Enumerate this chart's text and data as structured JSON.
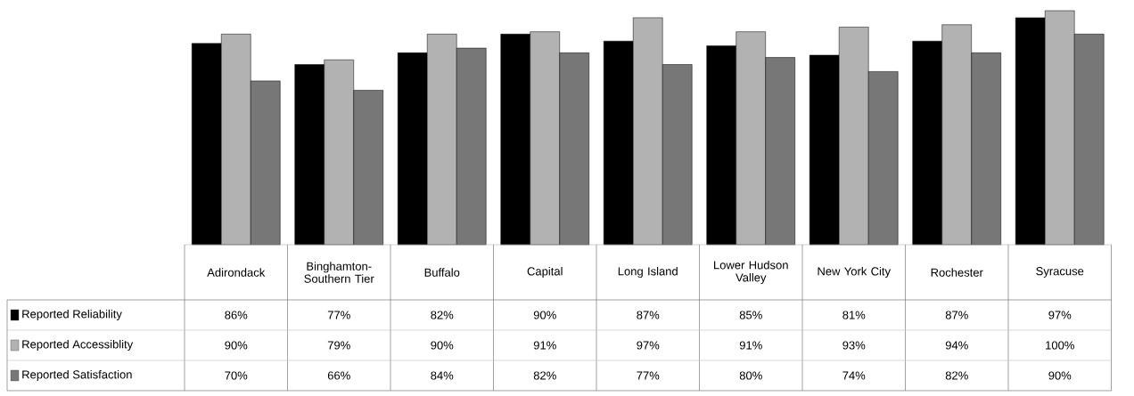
{
  "chart_data": {
    "type": "bar",
    "legend": "bottom left",
    "categories": [
      "Adirondack",
      "Binghamton-Southern Tier",
      "Buffalo",
      "Capital",
      "Long Island",
      "Lower Hudson Valley",
      "New York City",
      "Rochester",
      "Syracuse"
    ],
    "series": [
      {
        "name": "Reported Reliability",
        "color": "#000000",
        "values": [
          86,
          77,
          82,
          90,
          87,
          85,
          81,
          87,
          97
        ],
        "value_labels": [
          "86%",
          "77%",
          "82%",
          "90%",
          "87%",
          "85%",
          "81%",
          "87%",
          "97%"
        ]
      },
      {
        "name": "Reported Accessiblity",
        "color": "#b2b2b2",
        "values": [
          90,
          79,
          90,
          91,
          97,
          91,
          93,
          94,
          100
        ],
        "value_labels": [
          "90%",
          "79%",
          "90%",
          "91%",
          "97%",
          "91%",
          "93%",
          "94%",
          "100%"
        ]
      },
      {
        "name": "Reported Satisfaction",
        "color": "#777777",
        "values": [
          70,
          66,
          84,
          82,
          77,
          80,
          74,
          82,
          90
        ],
        "value_labels": [
          "70%",
          "66%",
          "84%",
          "82%",
          "77%",
          "80%",
          "74%",
          "82%",
          "90%"
        ]
      }
    ]
  }
}
